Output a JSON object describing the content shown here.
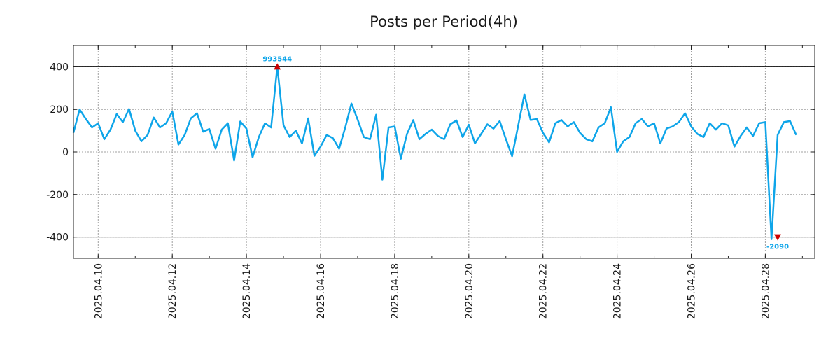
{
  "chart_data": {
    "type": "line",
    "title": "Posts per Period(4h)",
    "xlabel": "",
    "ylabel": "",
    "interval_hours": 4,
    "x_start": "2025-04-09 08:00",
    "xlim": [
      "2025-04-09 08:00",
      "2025-04-29 08:00"
    ],
    "ylim": [
      -500,
      500
    ],
    "y_ticks": [
      400,
      200,
      0,
      -200,
      -400
    ],
    "y_tick_labels": [
      "400",
      "200",
      "0",
      "-200",
      "-400"
    ],
    "x_ticks": [
      "2025.04.10",
      "2025.04.12",
      "2025.04.14",
      "2025.04.16",
      "2025.04.18",
      "2025.04.20",
      "2025.04.22",
      "2025.04.24",
      "2025.04.26",
      "2025.04.28"
    ],
    "reference_lines": [
      400,
      -400
    ],
    "grid": true,
    "series": [
      {
        "color": "#0ea5e9",
        "values": [
          90,
          200,
          155,
          115,
          135,
          60,
          105,
          178,
          140,
          202,
          100,
          50,
          80,
          162,
          115,
          135,
          190,
          35,
          80,
          158,
          182,
          95,
          108,
          15,
          105,
          135,
          -40,
          143,
          110,
          -25,
          70,
          135,
          115,
          400,
          125,
          70,
          100,
          40,
          158,
          -18,
          25,
          80,
          65,
          15,
          115,
          228,
          152,
          70,
          60,
          175,
          -130,
          115,
          120,
          -32,
          85,
          150,
          60,
          85,
          105,
          75,
          60,
          130,
          148,
          70,
          128,
          40,
          85,
          130,
          110,
          145,
          60,
          -20,
          125,
          270,
          150,
          155,
          90,
          45,
          135,
          150,
          120,
          140,
          90,
          60,
          50,
          115,
          135,
          210,
          0,
          50,
          70,
          135,
          155,
          120,
          135,
          40,
          110,
          120,
          140,
          182,
          120,
          85,
          70,
          135,
          105,
          135,
          125,
          25,
          75,
          115,
          75,
          135,
          140,
          -410,
          80,
          140,
          145,
          80
        ]
      }
    ],
    "annotations": [
      {
        "text": "993544",
        "x": "2025-04-14 20:00",
        "y": 400,
        "marker": "triangle-up",
        "color": "#0ea5e9",
        "marker_color": "#cc0000"
      },
      {
        "text": "-2090",
        "x": "2025-04-28 08:00",
        "y": -400,
        "marker": "triangle-down",
        "color": "#0ea5e9",
        "marker_color": "#cc0000"
      }
    ]
  }
}
